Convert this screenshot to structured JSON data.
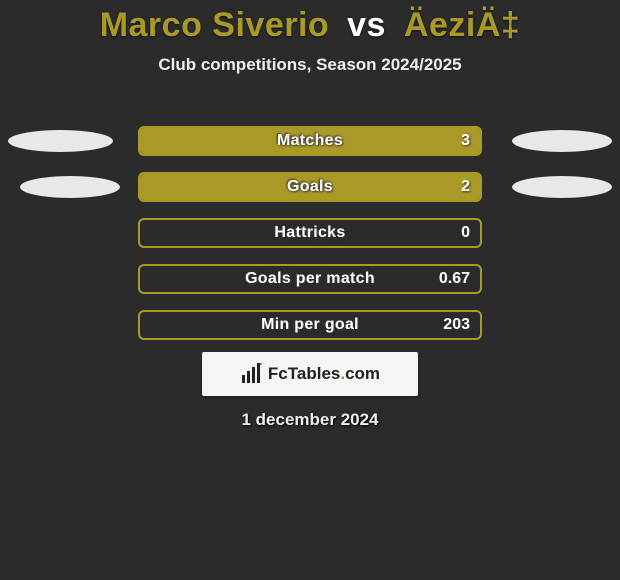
{
  "title": {
    "player1": "Marco Siverio",
    "vs": "vs",
    "player2": "ÄeziÄ‡"
  },
  "subtitle": "Club competitions, Season 2024/2025",
  "date": "1 december 2024",
  "logo": {
    "brand_left": "Fc",
    "brand_right": "Tables",
    "dot": ".",
    "tld": "com"
  },
  "colors": {
    "background": "#2b2b2b",
    "accent": "#a99a28",
    "ellipse": "#e8e8e8",
    "logo_bg": "#f5f5f5",
    "logo_green": "#7aa81c",
    "text": "#ffffff"
  },
  "stats": [
    {
      "label": "Matches",
      "value_text": "3",
      "fill_pct": 100,
      "left_ellipse_w": 105,
      "right_ellipse_w": 100,
      "show_ellipses": true
    },
    {
      "label": "Goals",
      "value_text": "2",
      "fill_pct": 100,
      "left_ellipse_w": 100,
      "right_ellipse_w": 100,
      "show_ellipses": true
    },
    {
      "label": "Hattricks",
      "value_text": "0",
      "fill_pct": 0,
      "left_ellipse_w": 0,
      "right_ellipse_w": 0,
      "show_ellipses": false
    },
    {
      "label": "Goals per match",
      "value_text": "0.67",
      "fill_pct": 0,
      "left_ellipse_w": 0,
      "right_ellipse_w": 0,
      "show_ellipses": false
    },
    {
      "label": "Min per goal",
      "value_text": "203",
      "fill_pct": 0,
      "left_ellipse_w": 0,
      "right_ellipse_w": 0,
      "show_ellipses": false
    }
  ]
}
